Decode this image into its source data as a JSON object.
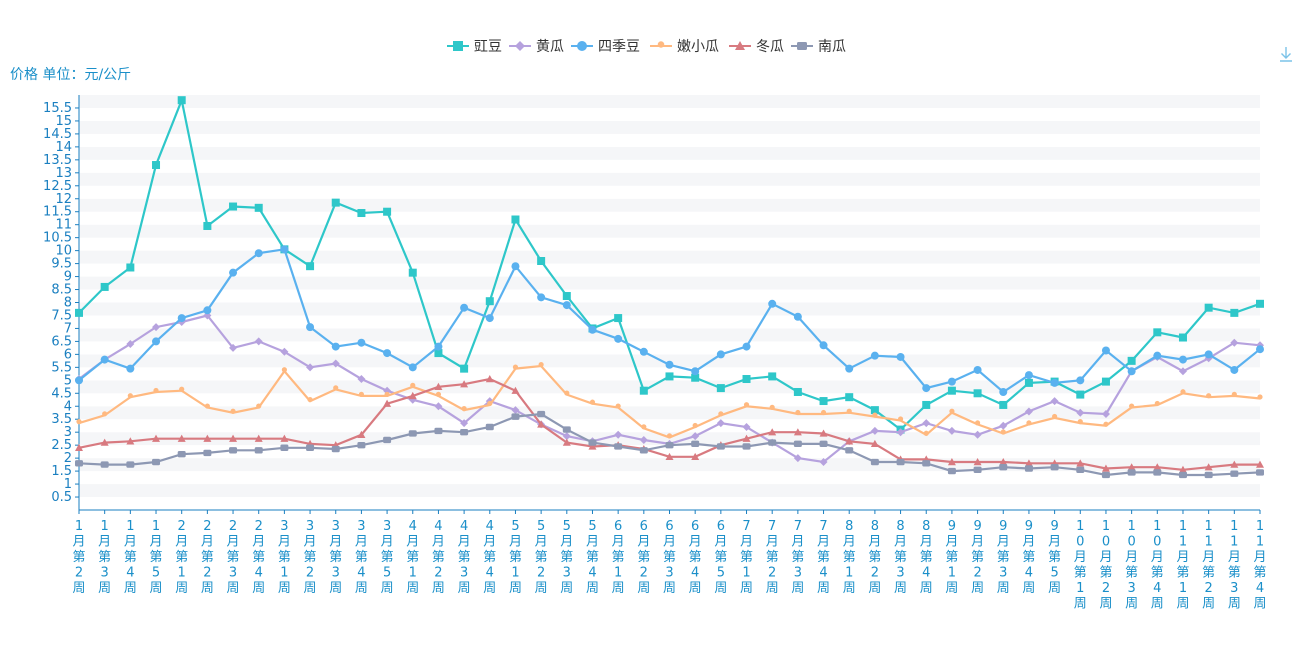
{
  "chart_data": {
    "type": "line",
    "ylabel": "价格 单位：元/公斤",
    "ylim": [
      0,
      16
    ],
    "yticks": [
      0.5,
      1,
      1.5,
      2,
      2.5,
      3,
      3.5,
      4,
      4.5,
      5,
      5.5,
      6,
      6.5,
      7,
      7.5,
      8,
      8.5,
      9,
      9.5,
      10,
      10.5,
      11,
      11.5,
      12,
      12.5,
      13,
      13.5,
      14,
      14.5,
      15,
      15.5
    ],
    "grid": true,
    "legend_position": "top-center",
    "categories": [
      "1月第2周",
      "1月第3周",
      "1月第4周",
      "1月第5周",
      "2月第1周",
      "2月第2周",
      "2月第3周",
      "2月第4周",
      "3月第1周",
      "3月第2周",
      "3月第3周",
      "3月第4周",
      "3月第5周",
      "4月第1周",
      "4月第2周",
      "4月第3周",
      "4月第4周",
      "5月第1周",
      "5月第2周",
      "5月第3周",
      "5月第4周",
      "6月第1周",
      "6月第2周",
      "6月第3周",
      "6月第4周",
      "6月第5周",
      "7月第1周",
      "7月第2周",
      "7月第3周",
      "7月第4周",
      "8月第1周",
      "8月第2周",
      "8月第3周",
      "8月第4周",
      "9月第1周",
      "9月第2周",
      "9月第3周",
      "9月第4周",
      "9月第5周",
      "10月第1周",
      "10月第2周",
      "10月第3周",
      "10月第4周",
      "11月第1周",
      "11月第2周",
      "11月第3周",
      "11月第4周"
    ],
    "series": [
      {
        "name": "豇豆",
        "color": "#2ec7c9",
        "symbol": "square",
        "values": [
          7.6,
          8.6,
          9.35,
          13.3,
          15.8,
          10.95,
          11.7,
          11.65,
          10.05,
          9.4,
          11.85,
          11.45,
          11.5,
          9.15,
          6.05,
          5.45,
          8.05,
          11.2,
          9.6,
          8.25,
          7.0,
          7.4,
          4.6,
          5.15,
          5.1,
          4.7,
          5.05,
          5.15,
          4.55,
          4.2,
          4.35,
          3.85,
          3.1,
          4.05,
          4.6,
          4.5,
          4.05,
          4.9,
          4.95,
          4.45,
          4.95,
          5.75,
          6.85,
          6.65,
          7.8,
          7.6,
          7.95
        ]
      },
      {
        "name": "黄瓜",
        "color": "#b6a2de",
        "symbol": "diamond",
        "values": [
          5.05,
          5.8,
          6.4,
          7.05,
          7.25,
          7.5,
          6.25,
          6.5,
          6.1,
          5.5,
          5.65,
          5.05,
          4.6,
          4.25,
          4.0,
          3.35,
          4.2,
          3.85,
          3.3,
          2.85,
          2.65,
          2.9,
          2.7,
          2.55,
          2.85,
          3.35,
          3.2,
          2.6,
          2.0,
          1.85,
          2.65,
          3.05,
          3.0,
          3.35,
          3.05,
          2.9,
          3.25,
          3.8,
          4.2,
          3.75,
          3.7,
          5.35,
          5.9,
          5.35,
          5.85,
          6.45,
          6.35
        ]
      },
      {
        "name": "四季豆",
        "color": "#5ab1ef",
        "symbol": "circle",
        "values": [
          5.0,
          5.8,
          5.45,
          6.5,
          7.4,
          7.7,
          9.15,
          9.9,
          10.05,
          7.05,
          6.3,
          6.45,
          6.05,
          5.5,
          6.3,
          7.8,
          7.4,
          9.4,
          8.2,
          7.9,
          6.95,
          6.6,
          6.1,
          5.6,
          5.35,
          6.0,
          6.3,
          7.95,
          7.45,
          6.35,
          5.45,
          5.95,
          5.9,
          4.7,
          4.95,
          5.4,
          4.55,
          5.2,
          4.9,
          5.0,
          6.15,
          5.35,
          5.95,
          5.8,
          6.0,
          5.4,
          6.2
        ]
      },
      {
        "name": "嫩小瓜",
        "color": "#ffb980",
        "symbol": "pin",
        "values": [
          3.35,
          3.65,
          4.35,
          4.55,
          4.6,
          3.95,
          3.75,
          3.95,
          5.35,
          4.2,
          4.65,
          4.4,
          4.4,
          4.75,
          4.4,
          3.85,
          4.05,
          5.45,
          5.55,
          4.45,
          4.1,
          3.95,
          3.15,
          2.8,
          3.2,
          3.65,
          4.0,
          3.9,
          3.7,
          3.7,
          3.75,
          3.6,
          3.45,
          2.9,
          3.75,
          3.3,
          2.95,
          3.3,
          3.55,
          3.35,
          3.25,
          3.95,
          4.05,
          4.5,
          4.35,
          4.4,
          4.3
        ]
      },
      {
        "name": "冬瓜",
        "color": "#d87a80",
        "symbol": "triangle",
        "values": [
          2.4,
          2.6,
          2.65,
          2.75,
          2.75,
          2.75,
          2.75,
          2.75,
          2.75,
          2.55,
          2.5,
          2.9,
          4.1,
          4.4,
          4.75,
          4.85,
          5.05,
          4.6,
          3.3,
          2.6,
          2.45,
          2.5,
          2.35,
          2.05,
          2.05,
          2.5,
          2.75,
          3.0,
          3.0,
          2.95,
          2.65,
          2.55,
          1.95,
          1.95,
          1.85,
          1.85,
          1.85,
          1.8,
          1.8,
          1.8,
          1.6,
          1.65,
          1.65,
          1.55,
          1.65,
          1.75,
          1.75
        ]
      },
      {
        "name": "南瓜",
        "color": "#8d98b3",
        "symbol": "roundRect",
        "values": [
          1.8,
          1.75,
          1.75,
          1.85,
          2.15,
          2.2,
          2.3,
          2.3,
          2.4,
          2.4,
          2.35,
          2.5,
          2.7,
          2.95,
          3.05,
          3.0,
          3.2,
          3.6,
          3.7,
          3.1,
          2.6,
          2.45,
          2.3,
          2.5,
          2.55,
          2.45,
          2.45,
          2.6,
          2.55,
          2.55,
          2.3,
          1.85,
          1.85,
          1.8,
          1.5,
          1.55,
          1.65,
          1.6,
          1.65,
          1.55,
          1.35,
          1.45,
          1.45,
          1.35,
          1.35,
          1.4,
          1.45
        ]
      }
    ]
  },
  "toolbar": {
    "save_icon": "download-icon"
  }
}
